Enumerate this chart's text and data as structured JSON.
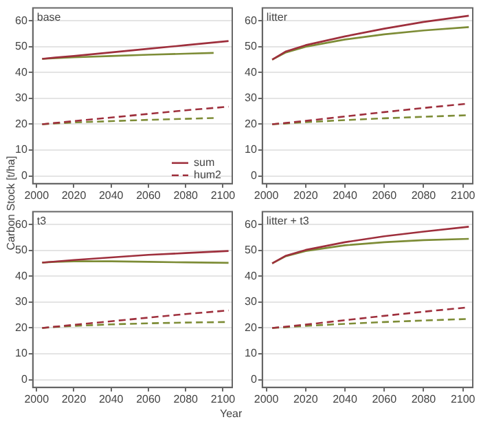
{
  "chart_data": [
    {
      "type": "line",
      "title": "base",
      "ylabel": "Carbon Stock [t/ha]",
      "x": [
        2003,
        2010,
        2020,
        2040,
        2060,
        2080,
        2103
      ],
      "xlim": [
        1998,
        2105
      ],
      "xticks": [
        2000,
        2020,
        2040,
        2060,
        2080,
        2100
      ],
      "ylim": [
        -3,
        65
      ],
      "yticks": [
        0,
        10,
        20,
        30,
        40,
        50,
        60
      ],
      "grid": "y",
      "legend": "bottom right",
      "marker": "none",
      "series": [
        {
          "name": "sum",
          "color": "#9e2f3c",
          "line_style": "solid",
          "values": [
            45.3,
            45.8,
            46.4,
            47.8,
            49.2,
            50.6,
            52.2
          ]
        },
        {
          "color": "#7d8c36",
          "line_style": "solid",
          "x": [
            2003,
            2020,
            2040,
            2060,
            2080,
            2095
          ],
          "values": [
            45.3,
            45.9,
            46.4,
            46.9,
            47.3,
            47.6
          ]
        },
        {
          "name": "hum2",
          "color": "#9e2f3c",
          "line_style": "dashed",
          "values": [
            20,
            20.5,
            21.2,
            22.6,
            24,
            25.4,
            26.8
          ]
        },
        {
          "color": "#7d8c36",
          "line_style": "dashed",
          "x": [
            2003,
            2020,
            2040,
            2060,
            2080,
            2095
          ],
          "values": [
            20,
            20.7,
            21.2,
            21.7,
            22.1,
            22.4
          ]
        }
      ]
    },
    {
      "type": "line",
      "title": "litter",
      "x": [
        2003,
        2010,
        2020,
        2040,
        2060,
        2080,
        2103
      ],
      "xlim": [
        1998,
        2105
      ],
      "xticks": [
        2000,
        2020,
        2040,
        2060,
        2080,
        2100
      ],
      "ylim": [
        -3,
        65
      ],
      "yticks": [
        0,
        10,
        20,
        30,
        40,
        50,
        60
      ],
      "grid": "y",
      "marker": "none",
      "series": [
        {
          "color": "#9e2f3c",
          "line_style": "solid",
          "values": [
            45,
            48.2,
            50.6,
            54,
            57,
            59.6,
            62
          ]
        },
        {
          "color": "#7d8c36",
          "line_style": "solid",
          "values": [
            45,
            47.8,
            50,
            52.8,
            54.8,
            56.3,
            57.6
          ]
        },
        {
          "color": "#9e2f3c",
          "line_style": "dashed",
          "values": [
            20,
            20.5,
            21.3,
            23,
            24.7,
            26.3,
            28
          ]
        },
        {
          "color": "#7d8c36",
          "line_style": "dashed",
          "values": [
            20,
            20.3,
            20.8,
            21.6,
            22.3,
            22.9,
            23.5
          ]
        }
      ]
    },
    {
      "type": "line",
      "title": "t3",
      "x": [
        2003,
        2010,
        2020,
        2040,
        2060,
        2080,
        2103
      ],
      "xlim": [
        1998,
        2105
      ],
      "xticks": [
        2000,
        2020,
        2040,
        2060,
        2080,
        2100
      ],
      "ylim": [
        -3,
        65
      ],
      "yticks": [
        0,
        10,
        20,
        30,
        40,
        50,
        60
      ],
      "grid": "y",
      "marker": "none",
      "series": [
        {
          "color": "#9e2f3c",
          "line_style": "solid",
          "values": [
            45.3,
            45.7,
            46.3,
            47.3,
            48.3,
            49,
            49.8
          ]
        },
        {
          "color": "#7d8c36",
          "line_style": "solid",
          "values": [
            45.3,
            45.6,
            45.8,
            45.8,
            45.6,
            45.4,
            45.2
          ]
        },
        {
          "color": "#9e2f3c",
          "line_style": "dashed",
          "values": [
            20,
            20.5,
            21.2,
            22.6,
            24,
            25.4,
            26.8
          ]
        },
        {
          "color": "#7d8c36",
          "line_style": "dashed",
          "values": [
            20,
            20.4,
            20.8,
            21.4,
            21.8,
            22.1,
            22.3
          ]
        }
      ]
    },
    {
      "type": "line",
      "title": "litter + t3",
      "xlabel": "Year",
      "x": [
        2003,
        2010,
        2020,
        2040,
        2060,
        2080,
        2103
      ],
      "xlim": [
        1998,
        2105
      ],
      "xticks": [
        2000,
        2020,
        2040,
        2060,
        2080,
        2100
      ],
      "ylim": [
        -3,
        65
      ],
      "yticks": [
        0,
        10,
        20,
        30,
        40,
        50,
        60
      ],
      "grid": "y",
      "marker": "none",
      "series": [
        {
          "color": "#9e2f3c",
          "line_style": "solid",
          "values": [
            45,
            48,
            50.2,
            53.2,
            55.5,
            57.3,
            59.2
          ]
        },
        {
          "color": "#7d8c36",
          "line_style": "solid",
          "values": [
            45,
            47.8,
            49.8,
            52,
            53.2,
            54,
            54.5
          ]
        },
        {
          "color": "#9e2f3c",
          "line_style": "dashed",
          "values": [
            20,
            20.5,
            21.3,
            23,
            24.7,
            26.3,
            28
          ]
        },
        {
          "color": "#7d8c36",
          "line_style": "dashed",
          "values": [
            20,
            20.3,
            20.8,
            21.6,
            22.3,
            22.9,
            23.5
          ]
        }
      ]
    }
  ]
}
